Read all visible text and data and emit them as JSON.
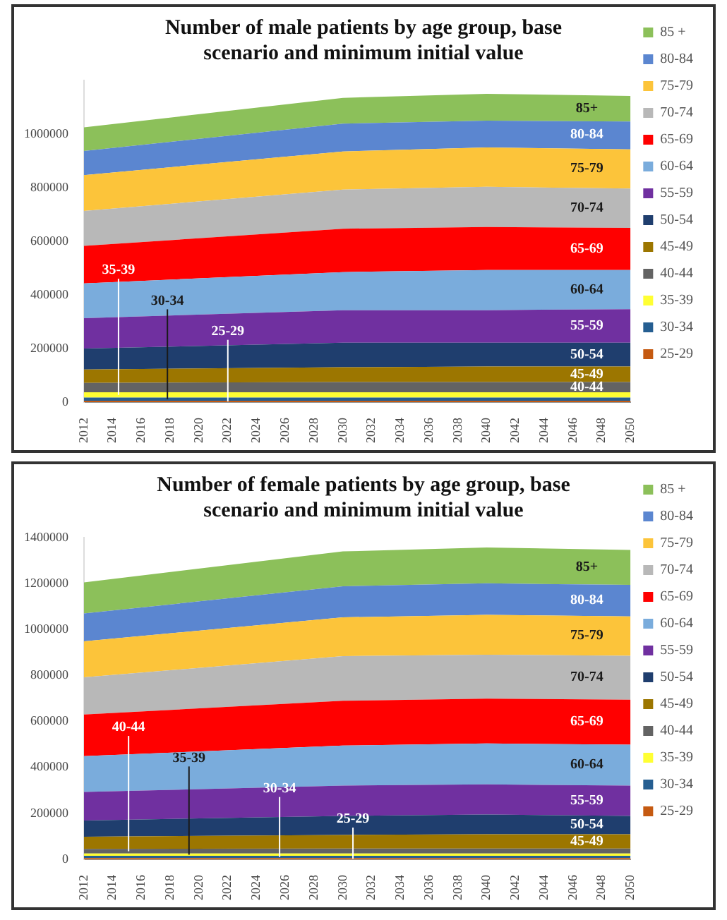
{
  "chart_data": [
    {
      "type": "area",
      "title": "Number of male patients by age group, base scenario and minimum initial value",
      "stacked": true,
      "legend": "right",
      "x": [
        2012,
        2030,
        2040,
        2050
      ],
      "xlim": [
        2012,
        2050
      ],
      "xticks": [
        2012,
        2014,
        2016,
        2018,
        2020,
        2022,
        2024,
        2026,
        2028,
        2030,
        2032,
        2034,
        2036,
        2038,
        2040,
        2042,
        2044,
        2046,
        2048,
        2050
      ],
      "ylim": [
        0,
        1200000
      ],
      "yticks": [
        0,
        200000,
        400000,
        600000,
        800000,
        1000000
      ],
      "series": [
        {
          "name": "25-29",
          "color": "#c55a11",
          "values": [
            5000,
            5000,
            5000,
            5000
          ]
        },
        {
          "name": "30-34",
          "color": "#255e91",
          "values": [
            12000,
            12000,
            12000,
            12000
          ]
        },
        {
          "name": "35-39",
          "color": "#ffff33",
          "values": [
            20000,
            20000,
            20000,
            20000
          ]
        },
        {
          "name": "40-44",
          "color": "#636363",
          "values": [
            35000,
            38000,
            38000,
            38000
          ]
        },
        {
          "name": "45-49",
          "color": "#9c7600",
          "values": [
            50000,
            55000,
            58000,
            58000
          ]
        },
        {
          "name": "50-54",
          "color": "#1f3e6e",
          "values": [
            78000,
            92000,
            89000,
            89000
          ]
        },
        {
          "name": "55-59",
          "color": "#7030a0",
          "values": [
            113000,
            121000,
            121000,
            125000
          ]
        },
        {
          "name": "60-64",
          "color": "#7aacdc",
          "values": [
            130000,
            142000,
            150000,
            146000
          ]
        },
        {
          "name": "65-69",
          "color": "#ff0000",
          "values": [
            140000,
            162000,
            160000,
            157000
          ]
        },
        {
          "name": "70-74",
          "color": "#b8b8b8",
          "values": [
            130000,
            146000,
            150000,
            147000
          ]
        },
        {
          "name": "75-79",
          "color": "#fcc43a",
          "values": [
            134000,
            142000,
            147000,
            146000
          ]
        },
        {
          "name": "80-84",
          "color": "#5b86d0",
          "values": [
            90000,
            104000,
            100000,
            104000
          ]
        },
        {
          "name": "85 +",
          "color": "#8cc05a",
          "values": [
            88000,
            96000,
            100000,
            95000
          ]
        }
      ],
      "annotations": [
        "85+",
        "80-84",
        "75-79",
        "70-74",
        "65-69",
        "60-64",
        "55-59",
        "50-54",
        "45-49",
        "40-44",
        {
          "text": "35-39",
          "x": 2014.4,
          "y": 27000
        },
        {
          "text": "30-34",
          "x": 2017.8,
          "y": 11000
        },
        {
          "text": "25-29",
          "x": 2022,
          "y": 2500
        }
      ]
    },
    {
      "type": "area",
      "title": "Number of female patients by age group, base scenario and minimum initial value",
      "stacked": true,
      "legend": "right",
      "x": [
        2012,
        2030,
        2040,
        2050
      ],
      "xlim": [
        2012,
        2050
      ],
      "xticks": [
        2012,
        2014,
        2016,
        2018,
        2020,
        2022,
        2024,
        2026,
        2028,
        2030,
        2032,
        2034,
        2036,
        2038,
        2040,
        2042,
        2044,
        2046,
        2048,
        2050
      ],
      "ylim": [
        0,
        1400000
      ],
      "yticks": [
        0,
        200000,
        400000,
        600000,
        800000,
        1000000,
        1200000,
        1400000
      ],
      "series": [
        {
          "name": "25-29",
          "color": "#c55a11",
          "values": [
            5000,
            5000,
            5000,
            5000
          ]
        },
        {
          "name": "30-34",
          "color": "#255e91",
          "values": [
            10000,
            10000,
            10000,
            10000
          ]
        },
        {
          "name": "35-39",
          "color": "#ffff33",
          "values": [
            10000,
            10000,
            10000,
            10000
          ]
        },
        {
          "name": "40-44",
          "color": "#636363",
          "values": [
            20000,
            22000,
            22000,
            22000
          ]
        },
        {
          "name": "45-49",
          "color": "#9c7600",
          "values": [
            53000,
            59000,
            62000,
            62000
          ]
        },
        {
          "name": "50-54",
          "color": "#1f3e6e",
          "values": [
            71000,
            83000,
            86000,
            80000
          ]
        },
        {
          "name": "55-59",
          "color": "#7030a0",
          "values": [
            124000,
            132000,
            131000,
            132000
          ]
        },
        {
          "name": "60-64",
          "color": "#7aacdc",
          "values": [
            156000,
            174000,
            178000,
            178000
          ]
        },
        {
          "name": "65-69",
          "color": "#ff0000",
          "values": [
            181000,
            195000,
            195000,
            196000
          ]
        },
        {
          "name": "70-74",
          "color": "#b8b8b8",
          "values": [
            162000,
            194000,
            191000,
            191000
          ]
        },
        {
          "name": "75-79",
          "color": "#fcc43a",
          "values": [
            157000,
            169000,
            174000,
            171000
          ]
        },
        {
          "name": "80-84",
          "color": "#5b86d0",
          "values": [
            121000,
            135000,
            137000,
            137000
          ]
        },
        {
          "name": "85 +",
          "color": "#8cc05a",
          "values": [
            135000,
            152000,
            156000,
            152000
          ]
        }
      ],
      "annotations": [
        "85+",
        "80-84",
        "75-79",
        "70-74",
        "65-69",
        "60-64",
        "55-59",
        "50-54",
        "45-49",
        {
          "text": "40-44",
          "x": 2015.1,
          "y": 35000
        },
        {
          "text": "35-39",
          "x": 2019.3,
          "y": 20000
        },
        {
          "text": "30-34",
          "x": 2025.6,
          "y": 10000
        },
        {
          "text": "25-29",
          "x": 2030.7,
          "y": 2500
        }
      ]
    }
  ]
}
